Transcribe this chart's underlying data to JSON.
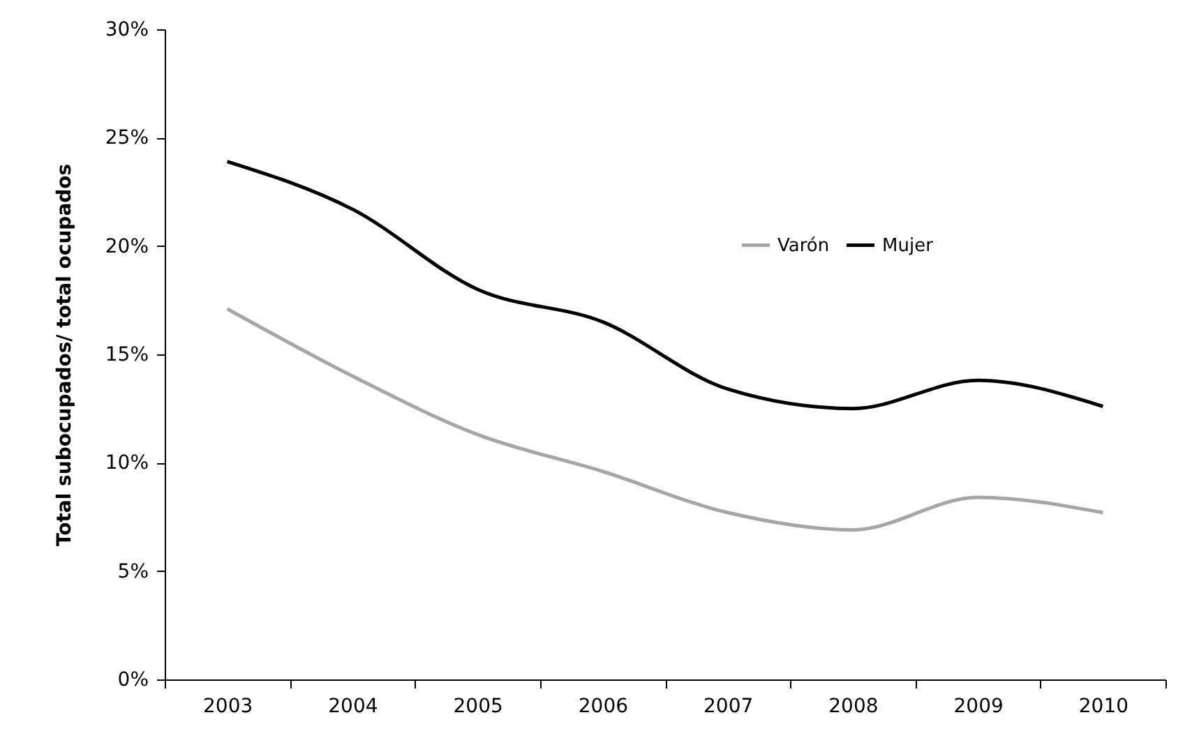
{
  "chart_data": {
    "type": "line",
    "ylabel": "Total subocupados/ total ocupados",
    "categories": [
      "2003",
      "2004",
      "2005",
      "2006",
      "2007",
      "2008",
      "2009",
      "2010"
    ],
    "series": [
      {
        "name": "Varón",
        "color": "#a6a6a6",
        "values": [
          17.1,
          14.0,
          11.3,
          9.6,
          7.7,
          6.9,
          8.4,
          7.7
        ]
      },
      {
        "name": "Mujer",
        "color": "#000000",
        "values": [
          23.9,
          21.7,
          18.0,
          16.5,
          13.4,
          12.5,
          13.8,
          12.6
        ]
      }
    ],
    "ylim": [
      0,
      30
    ],
    "yticks": [
      {
        "value": 0,
        "label": "0%"
      },
      {
        "value": 5,
        "label": "5%"
      },
      {
        "value": 10,
        "label": "10%"
      },
      {
        "value": 15,
        "label": "15%"
      },
      {
        "value": 20,
        "label": "20%"
      },
      {
        "value": 25,
        "label": "25%"
      },
      {
        "value": 30,
        "label": "30%"
      }
    ],
    "grid": false,
    "legend": "top right",
    "marker": "none",
    "line_style": "solid"
  }
}
